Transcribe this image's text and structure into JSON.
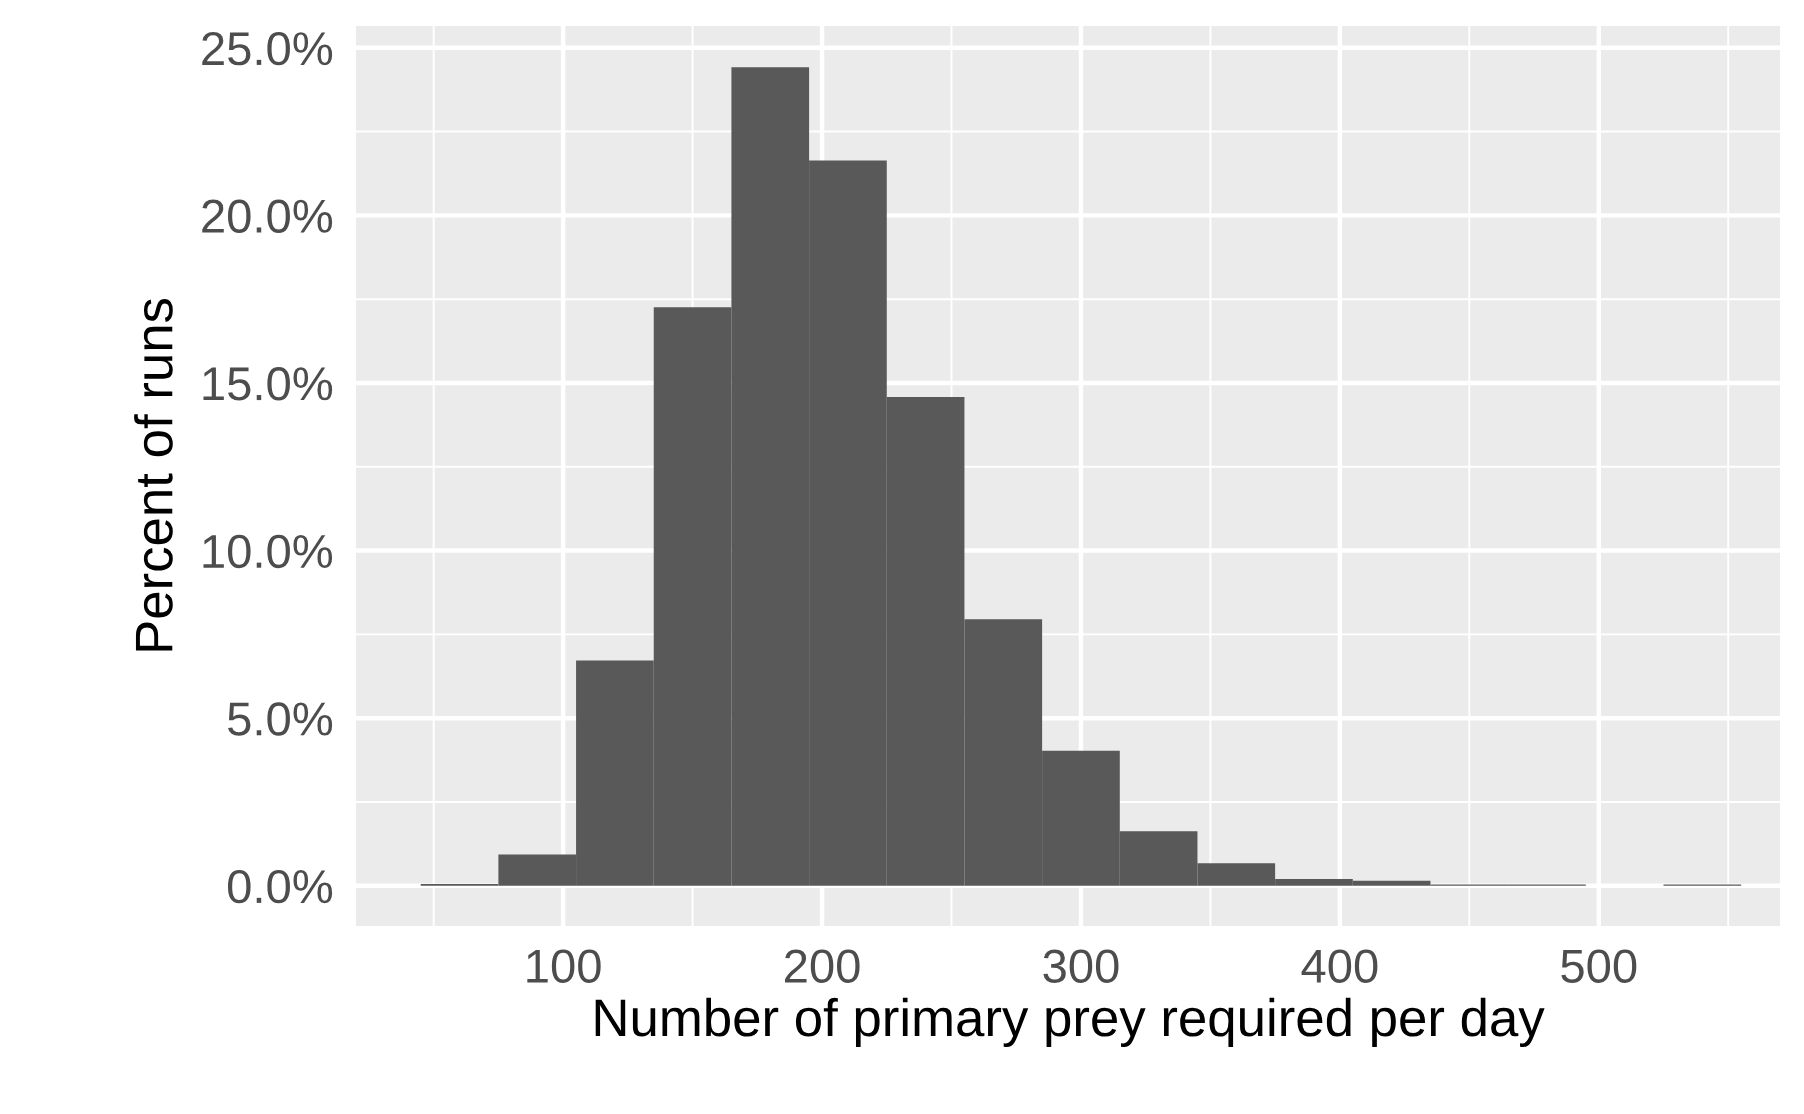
{
  "chart_data": {
    "type": "histogram",
    "xlabel": "Number of primary prey required per day",
    "ylabel": "Percent of runs",
    "bins": [
      45,
      75,
      105,
      135,
      165,
      195,
      225,
      255,
      285,
      315,
      345,
      375,
      405,
      435,
      465,
      495,
      525,
      555
    ],
    "values": [
      0.05,
      0.93,
      6.72,
      17.26,
      24.42,
      21.64,
      14.58,
      7.95,
      4.03,
      1.63,
      0.67,
      0.2,
      0.15,
      0.04,
      0.04,
      0,
      0.04
    ],
    "color": "#595959",
    "xlim": [
      20,
      570
    ],
    "xticks": [
      100,
      200,
      300,
      400,
      500
    ],
    "ylim": [
      -1.2,
      25.65
    ],
    "yticks": [
      {
        "value": 0,
        "label": "0.0%"
      },
      {
        "value": 5,
        "label": "5.0%"
      },
      {
        "value": 10,
        "label": "10.0%"
      },
      {
        "value": 15,
        "label": "15.0%"
      },
      {
        "value": 20,
        "label": "20.0%"
      },
      {
        "value": 25,
        "label": "25.0%"
      }
    ],
    "grid": true
  }
}
